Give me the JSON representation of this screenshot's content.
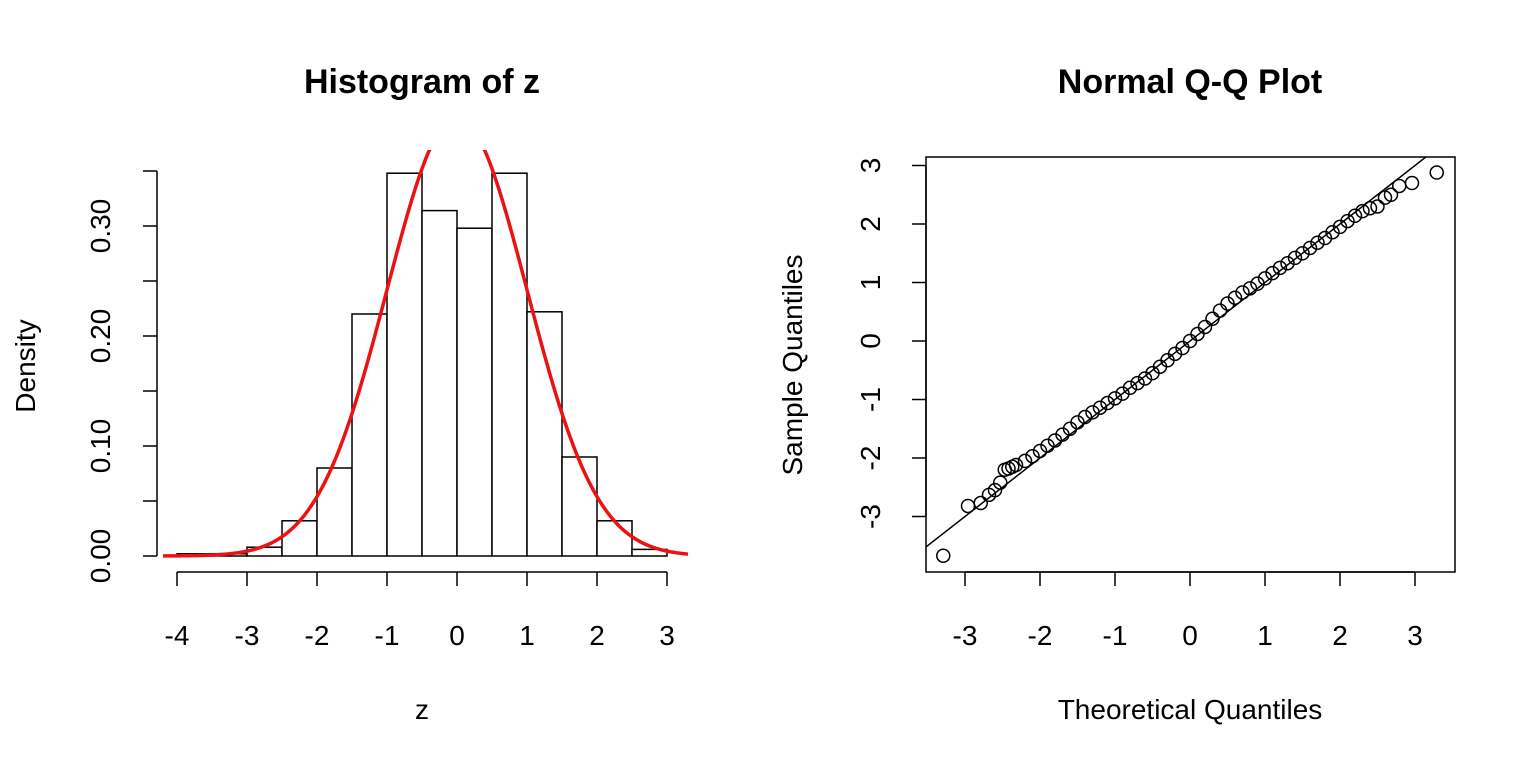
{
  "chart_data": [
    {
      "type": "bar",
      "title": "Histogram of z",
      "xlabel": "z",
      "ylabel": "Density",
      "xlim": [
        -4.3,
        3.3
      ],
      "ylim": [
        0,
        0.35
      ],
      "x_ticks": [
        -4,
        -3,
        -2,
        -1,
        0,
        1,
        2,
        3
      ],
      "x_tick_labels": [
        "-4",
        "-3",
        "-2",
        "-1",
        "0",
        "1",
        "2",
        "3"
      ],
      "y_ticks": [
        0,
        0.05,
        0.1,
        0.15,
        0.2,
        0.25,
        0.3,
        0.35
      ],
      "y_tick_labels": [
        "0.00",
        "",
        "0.10",
        "",
        "0.20",
        "",
        "0.30",
        ""
      ],
      "bins": [
        {
          "from": -4.0,
          "to": -3.5,
          "density": 0.002
        },
        {
          "from": -3.5,
          "to": -3.0,
          "density": 0.002
        },
        {
          "from": -3.0,
          "to": -2.5,
          "density": 0.008
        },
        {
          "from": -2.5,
          "to": -2.0,
          "density": 0.032
        },
        {
          "from": -2.0,
          "to": -1.5,
          "density": 0.08
        },
        {
          "from": -1.5,
          "to": -1.0,
          "density": 0.22
        },
        {
          "from": -1.0,
          "to": -0.5,
          "density": 0.348
        },
        {
          "from": -0.5,
          "to": 0.0,
          "density": 0.314
        },
        {
          "from": 0.0,
          "to": 0.5,
          "density": 0.298
        },
        {
          "from": 0.5,
          "to": 1.0,
          "density": 0.348
        },
        {
          "from": 1.0,
          "to": 1.5,
          "density": 0.222
        },
        {
          "from": 1.5,
          "to": 2.0,
          "density": 0.09
        },
        {
          "from": 2.0,
          "to": 2.5,
          "density": 0.032
        },
        {
          "from": 2.5,
          "to": 3.0,
          "density": 0.006
        }
      ],
      "overlay": {
        "type": "line",
        "curve": "normal-density",
        "mean": 0,
        "sd": 1,
        "x_from": -4.2,
        "x_to": 3.3,
        "color": "#EE1111"
      },
      "grid": false
    },
    {
      "type": "scatter",
      "title": "Normal Q-Q Plot",
      "xlabel": "Theoretical Quantiles",
      "ylabel": "Sample Quantiles",
      "xlim": [
        -3.45,
        3.6
      ],
      "ylim": [
        -3.9,
        3.15
      ],
      "x_ticks": [
        -3,
        -2,
        -1,
        0,
        1,
        2,
        3
      ],
      "x_tick_labels": [
        "-3",
        "-2",
        "-1",
        "0",
        "1",
        "2",
        "3"
      ],
      "y_ticks": [
        -3,
        -2,
        -1,
        0,
        1,
        2,
        3
      ],
      "y_tick_labels": [
        "-3",
        "-2",
        "-1",
        "0",
        "1",
        "2",
        "3"
      ],
      "points_x": [
        -3.29,
        -2.96,
        -2.79,
        -2.68,
        -2.6,
        -2.53,
        -2.47,
        -2.42,
        -2.37,
        -2.32,
        -2.2,
        -2.1,
        -2.0,
        -1.9,
        -1.8,
        -1.7,
        -1.6,
        -1.5,
        -1.4,
        -1.3,
        -1.2,
        -1.1,
        -1.0,
        -0.9,
        -0.8,
        -0.7,
        -0.6,
        -0.5,
        -0.4,
        -0.3,
        -0.2,
        -0.1,
        0.0,
        0.1,
        0.2,
        0.3,
        0.4,
        0.5,
        0.6,
        0.7,
        0.8,
        0.9,
        1.0,
        1.1,
        1.2,
        1.3,
        1.4,
        1.5,
        1.6,
        1.7,
        1.8,
        1.9,
        2.0,
        2.1,
        2.2,
        2.3,
        2.4,
        2.5,
        2.6,
        2.68,
        2.79,
        2.96,
        3.29
      ],
      "points_y": [
        -3.67,
        -2.82,
        -2.77,
        -2.63,
        -2.55,
        -2.42,
        -2.2,
        -2.18,
        -2.15,
        -2.12,
        -2.05,
        -1.97,
        -1.88,
        -1.79,
        -1.7,
        -1.6,
        -1.5,
        -1.39,
        -1.3,
        -1.22,
        -1.14,
        -1.06,
        -0.98,
        -0.9,
        -0.8,
        -0.72,
        -0.64,
        -0.55,
        -0.44,
        -0.33,
        -0.22,
        -0.12,
        0.0,
        0.12,
        0.24,
        0.38,
        0.52,
        0.64,
        0.74,
        0.83,
        0.9,
        0.98,
        1.07,
        1.16,
        1.25,
        1.33,
        1.42,
        1.5,
        1.59,
        1.68,
        1.76,
        1.86,
        1.95,
        2.05,
        2.14,
        2.22,
        2.27,
        2.3,
        2.45,
        2.5,
        2.65,
        2.7,
        2.88
      ],
      "reference_line": {
        "intercept": 0,
        "slope": 1
      },
      "grid": false
    }
  ]
}
